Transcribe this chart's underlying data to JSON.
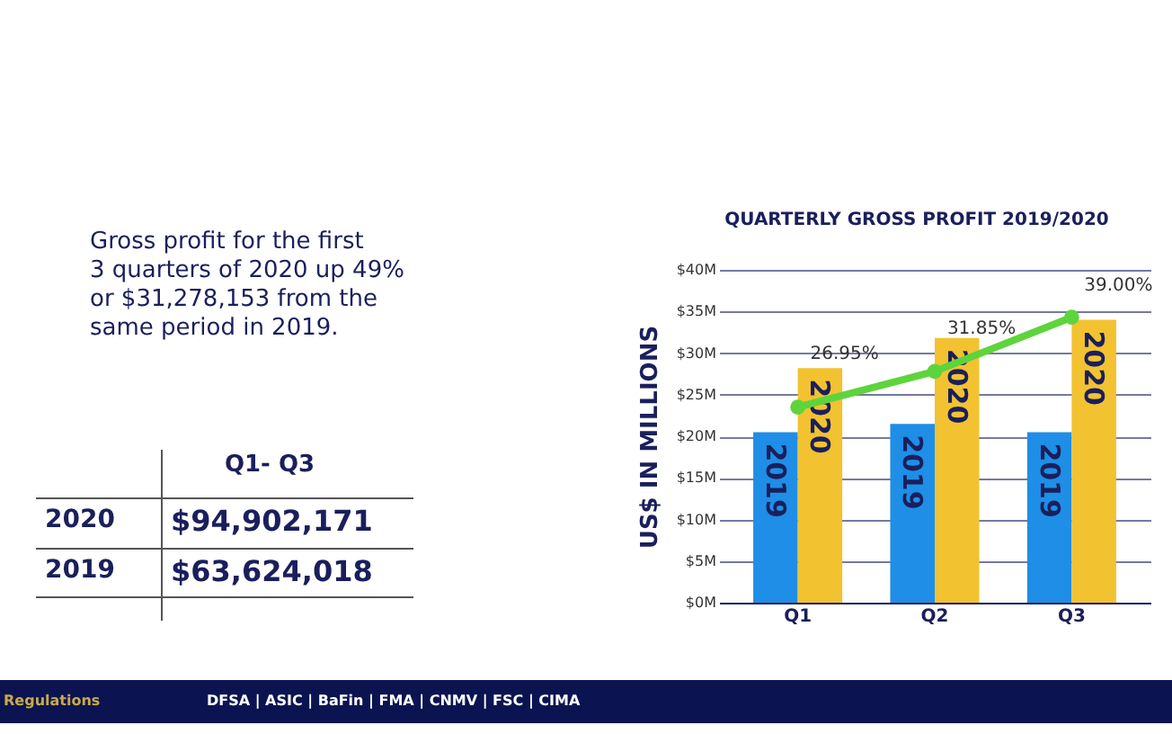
{
  "chart_data": {
    "type": "bar",
    "title": "QUARTERLY GROSS PROFIT 2019/2020",
    "ylabel": "US$ IN MILLIONS",
    "categories": [
      "Q1",
      "Q2",
      "Q3"
    ],
    "series": [
      {
        "name": "2019",
        "color": "#1e8ee6",
        "values": [
          20.5,
          21.5,
          20.5
        ]
      },
      {
        "name": "2020",
        "color": "#f2c230",
        "values": [
          28.2,
          31.8,
          34.0
        ]
      },
      {
        "type": "line",
        "color": "#5ed43c",
        "values": [
          23.5,
          27.8,
          34.3
        ]
      }
    ],
    "ylim": [
      0,
      40
    ],
    "yticks": [
      {
        "value": 0,
        "label": "$0M"
      },
      {
        "value": 5,
        "label": "$5M"
      },
      {
        "value": 10,
        "label": "$10M"
      },
      {
        "value": 15,
        "label": "$15M"
      },
      {
        "value": 20,
        "label": "$20M"
      },
      {
        "value": 25,
        "label": "$25M"
      },
      {
        "value": 30,
        "label": "$30M"
      },
      {
        "value": 35,
        "label": "$35M"
      },
      {
        "value": 40,
        "label": "$40M"
      }
    ],
    "grid": "y",
    "marker": "circle",
    "line_style": "solid",
    "annotations": [
      "Gross profit for the first 3 quarters of 2020 up 49% or $31,278,153 from the same period in 2019.",
      "Q1- Q3",
      "2020",
      "$94,902,171",
      "2019",
      "$63,624,018",
      "Regulations",
      "DFSA | ASIC | BaFin | FMA | CNMV | FSC | CIMA",
      "26.95%",
      "31.85%",
      "39.00%"
    ]
  }
}
